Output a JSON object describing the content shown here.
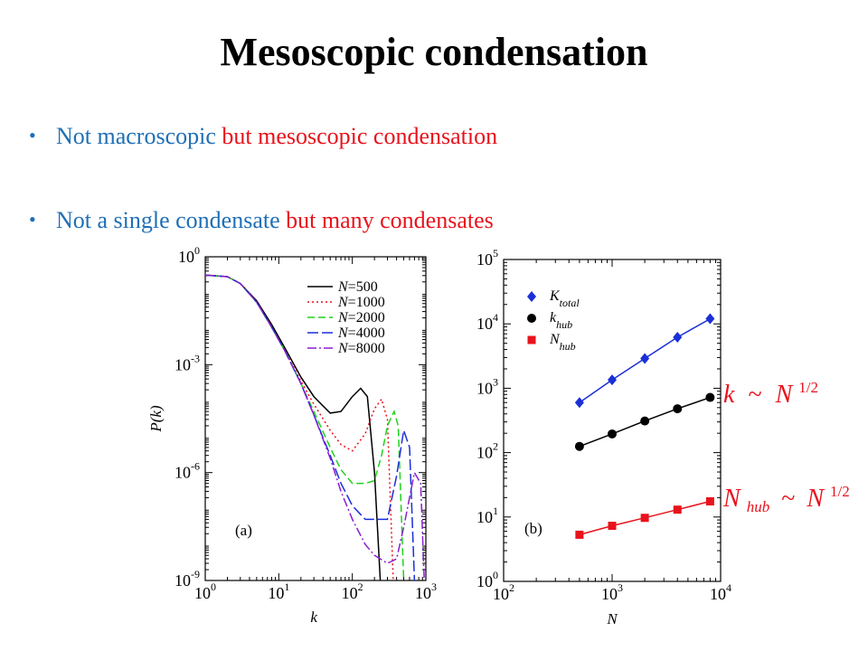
{
  "slide": {
    "title": "Mesoscopic condensation",
    "bullets": [
      {
        "part1": "Not macroscopic",
        "part2": "but mesoscopic",
        "part3": "condensation"
      },
      {
        "part1": "Not a single condensate",
        "part2": "but many condensates",
        "part3": ""
      }
    ],
    "scaling_labels": {
      "k_label": {
        "base": "k",
        "rel": "~",
        "rhs": "N",
        "exp": "1/2"
      },
      "nhub_label": {
        "base": "N",
        "sub": "hub",
        "rel": "~",
        "rhs": "N",
        "exp": "1/2"
      }
    }
  },
  "chart_data": [
    {
      "type": "line",
      "panel_label": "(a)",
      "xlabel": "k",
      "ylabel": "P(k)",
      "x_scale": "log",
      "y_scale": "log",
      "xlim": [
        1,
        1000
      ],
      "ylim": [
        1e-09,
        1
      ],
      "x_ticks": [
        {
          "base": "10",
          "exp": "0",
          "v": 1
        },
        {
          "base": "10",
          "exp": "1",
          "v": 10
        },
        {
          "base": "10",
          "exp": "2",
          "v": 100
        },
        {
          "base": "10",
          "exp": "3",
          "v": 1000
        }
      ],
      "y_ticks": [
        {
          "base": "10",
          "exp": "0",
          "v": 1
        },
        {
          "base": "10",
          "exp": "-3",
          "v": 0.001
        },
        {
          "base": "10",
          "exp": "-6",
          "v": 1e-06
        },
        {
          "base": "10",
          "exp": "-9",
          "v": 1e-09
        }
      ],
      "legend_position": "top-right",
      "series": [
        {
          "name_var": "N",
          "name_val": "=500",
          "color": "#000000",
          "dash": "solid",
          "x": [
            1,
            2,
            3,
            5,
            8,
            12,
            20,
            30,
            50,
            70,
            100,
            130,
            160,
            200,
            240
          ],
          "y": [
            0.31,
            0.28,
            0.18,
            0.06,
            0.013,
            0.003,
            0.00045,
            0.00013,
            4.5e-05,
            5e-05,
            0.00013,
            0.00022,
            0.00013,
            1e-06,
            1e-09
          ]
        },
        {
          "name_var": "N",
          "name_val": "=1000",
          "color": "#e8121c",
          "dash": "2 3",
          "x": [
            1,
            2,
            3,
            5,
            8,
            12,
            20,
            30,
            50,
            70,
            100,
            150,
            200,
            250,
            300,
            360
          ],
          "y": [
            0.31,
            0.28,
            0.18,
            0.055,
            0.011,
            0.0025,
            0.00035,
            8e-05,
            1.5e-05,
            6e-06,
            4e-06,
            1.2e-05,
            6e-05,
            0.00011,
            3e-05,
            1e-09
          ]
        },
        {
          "name_var": "N",
          "name_val": "=2000",
          "color": "#1ed21e",
          "dash": "8 4",
          "x": [
            1,
            2,
            3,
            5,
            8,
            12,
            20,
            30,
            50,
            70,
            100,
            150,
            200,
            250,
            300,
            370,
            420,
            500
          ],
          "y": [
            0.31,
            0.28,
            0.18,
            0.055,
            0.011,
            0.0025,
            0.0003,
            5e-05,
            5e-06,
            1.2e-06,
            5e-07,
            5e-07,
            6e-07,
            3e-06,
            2e-05,
            5e-05,
            2e-05,
            1e-09
          ]
        },
        {
          "name_var": "N",
          "name_val": "=4000",
          "color": "#1a2fd8",
          "dash": "12 4",
          "x": [
            1,
            2,
            3,
            5,
            8,
            12,
            20,
            30,
            50,
            70,
            100,
            150,
            200,
            300,
            400,
            500,
            600,
            700
          ],
          "y": [
            0.31,
            0.28,
            0.18,
            0.055,
            0.011,
            0.0025,
            0.0003,
            4e-05,
            3e-06,
            5e-07,
            1.2e-07,
            5e-08,
            5e-08,
            5e-08,
            8e-07,
            1.5e-05,
            5e-06,
            1e-09
          ]
        },
        {
          "name_var": "N",
          "name_val": "=8000",
          "color": "#8a1fd0",
          "dash": "10 3 2 3",
          "x": [
            1,
            2,
            3,
            5,
            8,
            12,
            20,
            30,
            50,
            70,
            100,
            150,
            200,
            300,
            400,
            500,
            700,
            850,
            950
          ],
          "y": [
            0.31,
            0.28,
            0.18,
            0.055,
            0.011,
            0.0025,
            0.0003,
            4e-05,
            2.5e-06,
            3e-07,
            5e-08,
            1e-08,
            5e-09,
            3e-09,
            4e-09,
            3e-08,
            1e-06,
            5e-07,
            1e-09
          ]
        }
      ]
    },
    {
      "type": "scatter",
      "panel_label": "(b)",
      "xlabel": "N",
      "ylabel": "",
      "x_scale": "log",
      "y_scale": "log",
      "xlim": [
        100,
        10000
      ],
      "ylim": [
        1,
        100000
      ],
      "x_ticks": [
        {
          "base": "10",
          "exp": "2",
          "v": 100
        },
        {
          "base": "10",
          "exp": "3",
          "v": 1000
        },
        {
          "base": "10",
          "exp": "4",
          "v": 10000
        }
      ],
      "y_ticks": [
        {
          "base": "10",
          "exp": "0",
          "v": 1
        },
        {
          "base": "10",
          "exp": "1",
          "v": 10
        },
        {
          "base": "10",
          "exp": "2",
          "v": 100
        },
        {
          "base": "10",
          "exp": "3",
          "v": 1000
        },
        {
          "base": "10",
          "exp": "4",
          "v": 10000
        },
        {
          "base": "10",
          "exp": "5",
          "v": 100000
        }
      ],
      "legend_position": "top-left",
      "series": [
        {
          "name_base": "K",
          "name_sub": "total",
          "marker": "diamond",
          "color": "#1a2fd8",
          "x": [
            500,
            1000,
            2000,
            4000,
            8000
          ],
          "y": [
            600,
            1350,
            2900,
            6200,
            12000
          ]
        },
        {
          "name_base": "k",
          "name_sub": "hub",
          "marker": "circle",
          "color": "#000000",
          "x": [
            500,
            1000,
            2000,
            4000,
            8000
          ],
          "y": [
            125,
            195,
            310,
            480,
            720
          ]
        },
        {
          "name_base": "N",
          "name_sub": "hub",
          "marker": "square",
          "color": "#e8121c",
          "x": [
            500,
            1000,
            2000,
            4000,
            8000
          ],
          "y": [
            5.3,
            7.3,
            9.7,
            13,
            17.5
          ]
        }
      ]
    }
  ]
}
